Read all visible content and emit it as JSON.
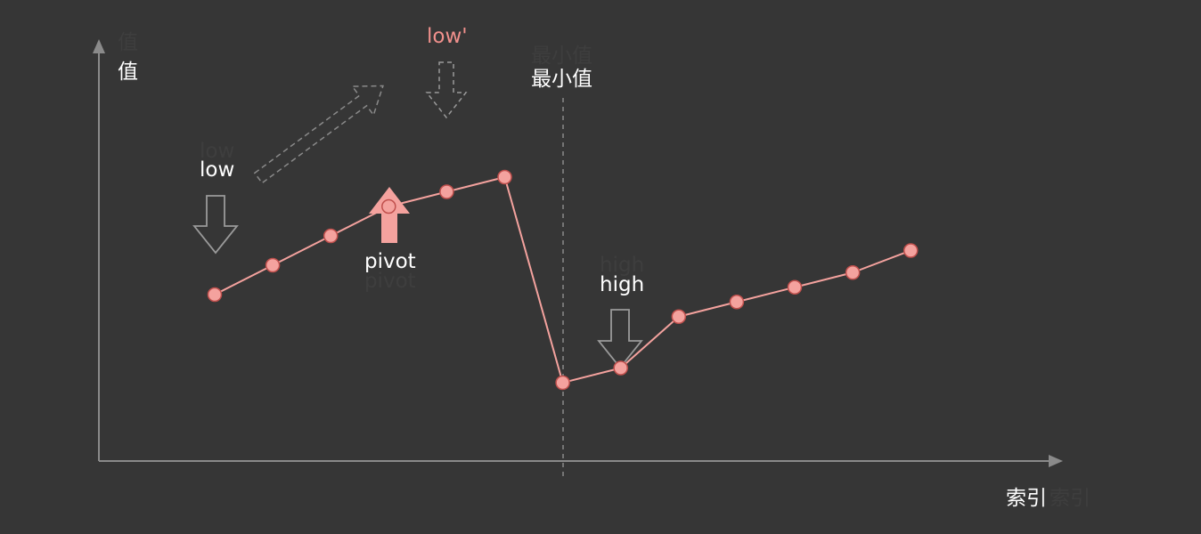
{
  "axes": {
    "y_label": "值",
    "x_label": "索引"
  },
  "labels": {
    "low": "low",
    "low_prime": "low'",
    "pivot": "pivot",
    "high": "high",
    "minimum": "最小值"
  },
  "chart_data": {
    "type": "line",
    "x": [
      1,
      2,
      3,
      4,
      5,
      6,
      7,
      8,
      9,
      10,
      11,
      12,
      13
    ],
    "values": [
      1,
      3,
      5,
      7,
      8,
      9,
      -5,
      -4,
      -0.5,
      0.5,
      1.5,
      2.5,
      4
    ]
  },
  "colors": {
    "background": "#363636",
    "series": "#f4a29e",
    "point_stroke": "#c0504d",
    "axis": "#8a8a8a",
    "pivot_arrow": "#f4a29e",
    "arrow_outline": "#9a9a9a",
    "text": "#ffffff",
    "text_ghost": "#3e3e3e",
    "text_accent": "#f0908c"
  },
  "icons": {
    "pivot_arrow": "up-arrow-icon",
    "low_arrow": "down-arrow-icon",
    "high_arrow": "down-arrow-icon",
    "low_prime_arrow": "dashed-down-arrow-icon",
    "move_arrow": "dashed-diagonal-arrow-icon"
  }
}
